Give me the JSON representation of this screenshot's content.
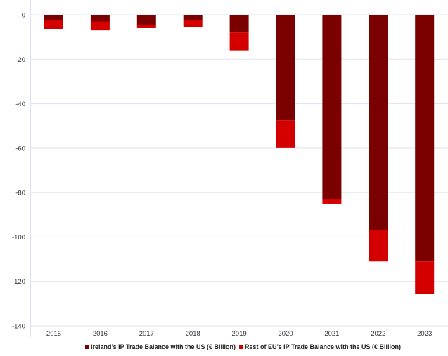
{
  "chart_data": {
    "type": "bar",
    "stacked": true,
    "categories": [
      "2015",
      "2016",
      "2017",
      "2018",
      "2019",
      "2020",
      "2021",
      "2022",
      "2023"
    ],
    "series": [
      {
        "name": "Ireland’s IP Trade Balance with the US (€ Billion)",
        "color": "#7b0000",
        "values": [
          -2.5,
          -3,
          -4.5,
          -2.5,
          -8,
          -47.5,
          -83,
          -97,
          -111
        ]
      },
      {
        "name": "Rest of EU’s IP Trade Balance with the US (€ Billion)",
        "color": "#d40000",
        "values": [
          -4,
          -4,
          -1.5,
          -3,
          -8,
          -12.5,
          -2,
          -14,
          -14.5
        ]
      }
    ],
    "ylim": [
      -140,
      0
    ],
    "yticks": [
      0,
      -20,
      -40,
      -60,
      -80,
      -100,
      -120,
      -140
    ],
    "grid": true,
    "legend_position": "bottom"
  }
}
